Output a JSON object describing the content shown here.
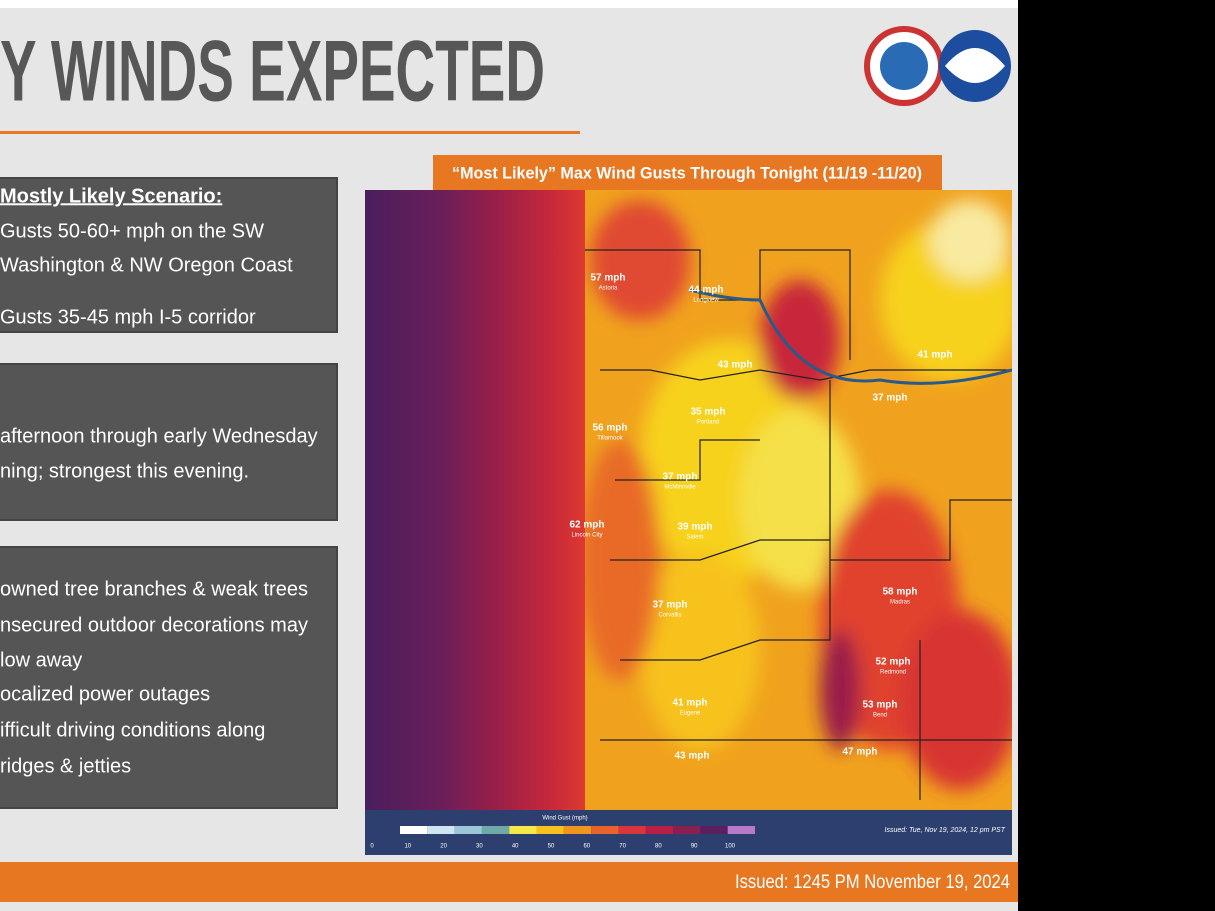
{
  "header": {
    "title": "Y WINDS EXPECTED"
  },
  "scenario_box": {
    "heading": "Mostly Likely Scenario:",
    "lines": [
      "Gusts 50-60+ mph on the SW",
      "Washington & NW Oregon Coast",
      "Gusts 35-45 mph I-5 corridor"
    ]
  },
  "timing_box": {
    "lines": [
      "afternoon through early Wednesday",
      "ning; strongest this evening."
    ]
  },
  "impacts_box": {
    "lines": [
      "owned tree branches & weak trees",
      "nsecured outdoor decorations may",
      "low away",
      "ocalized power outages",
      "ifficult driving conditions along",
      "ridges & jetties"
    ]
  },
  "map": {
    "title": "“Most Likely” Max Wind Gusts Through Tonight (11/19 -11/20)",
    "labels": [
      {
        "gust": "57 mph",
        "place": "Astoria"
      },
      {
        "gust": "44 mph",
        "place": "Longview"
      },
      {
        "gust": "43 mph"
      },
      {
        "gust": "56 mph",
        "place": "Tillamook"
      },
      {
        "gust": "35 mph",
        "place": "Portland"
      },
      {
        "gust": "41 mph"
      },
      {
        "gust": "37 mph"
      },
      {
        "gust": "37 mph",
        "place": "McMinnville"
      },
      {
        "gust": "62 mph",
        "place": "Lincoln City"
      },
      {
        "gust": "39 mph",
        "place": "Salem"
      },
      {
        "gust": "37 mph",
        "place": "Corvallis"
      },
      {
        "gust": "58 mph",
        "place": "Madras"
      },
      {
        "gust": "52 mph",
        "place": "Redmond"
      },
      {
        "gust": "53 mph",
        "place": "Bend"
      },
      {
        "gust": "41 mph",
        "place": "Eugene"
      },
      {
        "gust": "47 mph"
      },
      {
        "gust": "43 mph"
      }
    ],
    "legend": {
      "title": "Wind Gust (mph)",
      "ticks": [
        0,
        10,
        20,
        30,
        40,
        50,
        60,
        70,
        80,
        90,
        100
      ]
    },
    "issued": "Issued: Tue, Nov 19, 2024, 12 pm PST"
  },
  "footer": {
    "issued": "Issued: 1245 PM November 19, 2024"
  }
}
